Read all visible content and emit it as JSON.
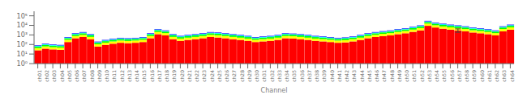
{
  "chart_data": {
    "type": "bar",
    "stacked": true,
    "log": "y",
    "grid": false,
    "xlabel": "Channel",
    "baseline": 0.8,
    "categories": [
      "ch01",
      "ch02",
      "ch03",
      "ch04",
      "ch05",
      "ch06",
      "ch07",
      "ch08",
      "ch09",
      "ch10",
      "ch11",
      "ch12",
      "ch13",
      "ch14",
      "ch15",
      "ch16",
      "ch17",
      "ch18",
      "ch19",
      "ch20",
      "ch21",
      "ch22",
      "ch23",
      "ch24",
      "ch25",
      "ch26",
      "ch27",
      "ch28",
      "ch29",
      "ch30",
      "ch31",
      "ch32",
      "ch33",
      "ch34",
      "ch35",
      "ch36",
      "ch37",
      "ch38",
      "ch39",
      "ch40",
      "ch41",
      "ch42",
      "ch43",
      "ch44",
      "ch45",
      "ch46",
      "ch47",
      "ch48",
      "ch49",
      "ch50",
      "ch51",
      "ch52",
      "ch53",
      "ch54",
      "ch55",
      "ch56",
      "ch57",
      "ch58",
      "ch59",
      "ch60",
      "ch61",
      "ch62",
      "ch63",
      "ch64"
    ],
    "series": [
      {
        "color": "#ff0000",
        "values": [
          24,
          36,
          30,
          27,
          180,
          450,
          600,
          360,
          60,
          90,
          120,
          150,
          135,
          150,
          180,
          450,
          1200,
          900,
          360,
          240,
          300,
          360,
          450,
          600,
          540,
          450,
          360,
          300,
          240,
          180,
          210,
          240,
          300,
          450,
          420,
          360,
          300,
          240,
          210,
          180,
          150,
          165,
          210,
          300,
          450,
          600,
          750,
          900,
          1200,
          1500,
          2100,
          3000,
          9000,
          6000,
          4500,
          3600,
          3000,
          2400,
          1800,
          1500,
          1200,
          900,
          2400,
          3600
        ]
      },
      {
        "color": "#ffff00",
        "values": [
          17.6,
          26.4,
          22,
          19.8,
          132,
          330,
          440,
          264,
          44,
          66,
          88,
          110,
          99,
          110,
          132,
          330,
          880,
          660,
          264,
          176,
          220,
          264,
          330,
          440,
          396,
          330,
          264,
          220,
          176,
          132,
          154,
          176,
          220,
          330,
          308,
          264,
          220,
          176,
          154,
          132,
          110,
          121,
          154,
          220,
          330,
          440,
          550,
          660,
          880,
          1100,
          1540,
          2200,
          6600,
          4400,
          3300,
          2640,
          2200,
          1760,
          1320,
          1100,
          880,
          660,
          1760,
          2640
        ]
      },
      {
        "color": "#00ff00",
        "values": [
          17.6,
          26.4,
          22,
          19.8,
          132,
          330,
          440,
          264,
          44,
          66,
          88,
          110,
          99,
          110,
          132,
          330,
          880,
          660,
          264,
          176,
          220,
          264,
          330,
          440,
          396,
          330,
          264,
          220,
          176,
          132,
          154,
          176,
          220,
          330,
          308,
          264,
          220,
          176,
          154,
          132,
          110,
          121,
          154,
          220,
          330,
          440,
          550,
          660,
          880,
          1100,
          1540,
          2200,
          6600,
          4400,
          3300,
          2640,
          2200,
          1760,
          1320,
          1100,
          880,
          660,
          1760,
          2640
        ]
      },
      {
        "color": "#00ffff",
        "values": [
          11.2,
          16.8,
          14,
          12.6,
          84,
          210,
          280,
          168,
          28,
          42,
          56,
          70,
          63,
          70,
          84,
          210,
          560,
          420,
          168,
          112,
          140,
          168,
          210,
          280,
          252,
          210,
          168,
          140,
          112,
          84,
          98,
          112,
          140,
          210,
          196,
          168,
          140,
          112,
          98,
          84,
          70,
          77,
          98,
          140,
          210,
          280,
          350,
          420,
          560,
          700,
          980,
          1400,
          4200,
          2800,
          2100,
          1680,
          1400,
          1120,
          840,
          700,
          560,
          420,
          1120,
          1680
        ]
      },
      {
        "color": "#0000ff",
        "values": [
          9.6,
          14.4,
          12,
          10.8,
          72,
          180,
          240,
          144,
          24,
          36,
          48,
          60,
          54,
          60,
          72,
          180,
          480,
          360,
          144,
          96,
          120,
          144,
          180,
          240,
          216,
          180,
          144,
          120,
          96,
          72,
          84,
          96,
          120,
          180,
          168,
          144,
          120,
          96,
          84,
          72,
          60,
          66,
          84,
          120,
          180,
          240,
          300,
          360,
          480,
          600,
          840,
          1200,
          3600,
          2400,
          1800,
          1440,
          1200,
          960,
          720,
          600,
          480,
          360,
          960,
          1440
        ]
      }
    ],
    "error_bars": [
      {
        "category": "ch57",
        "value": 2500,
        "minus": 600,
        "plus": 1800,
        "color": "#444444"
      }
    ],
    "ylim": [
      1,
      300000
    ],
    "yticks": [
      {
        "value": 1,
        "label": "10⁰"
      },
      {
        "value": 10,
        "label": "10¹"
      },
      {
        "value": 100,
        "label": "10²"
      },
      {
        "value": 1000,
        "label": "10³"
      },
      {
        "value": 10000,
        "label": "10⁴"
      },
      {
        "value": 100000,
        "label": "10⁵"
      }
    ]
  }
}
